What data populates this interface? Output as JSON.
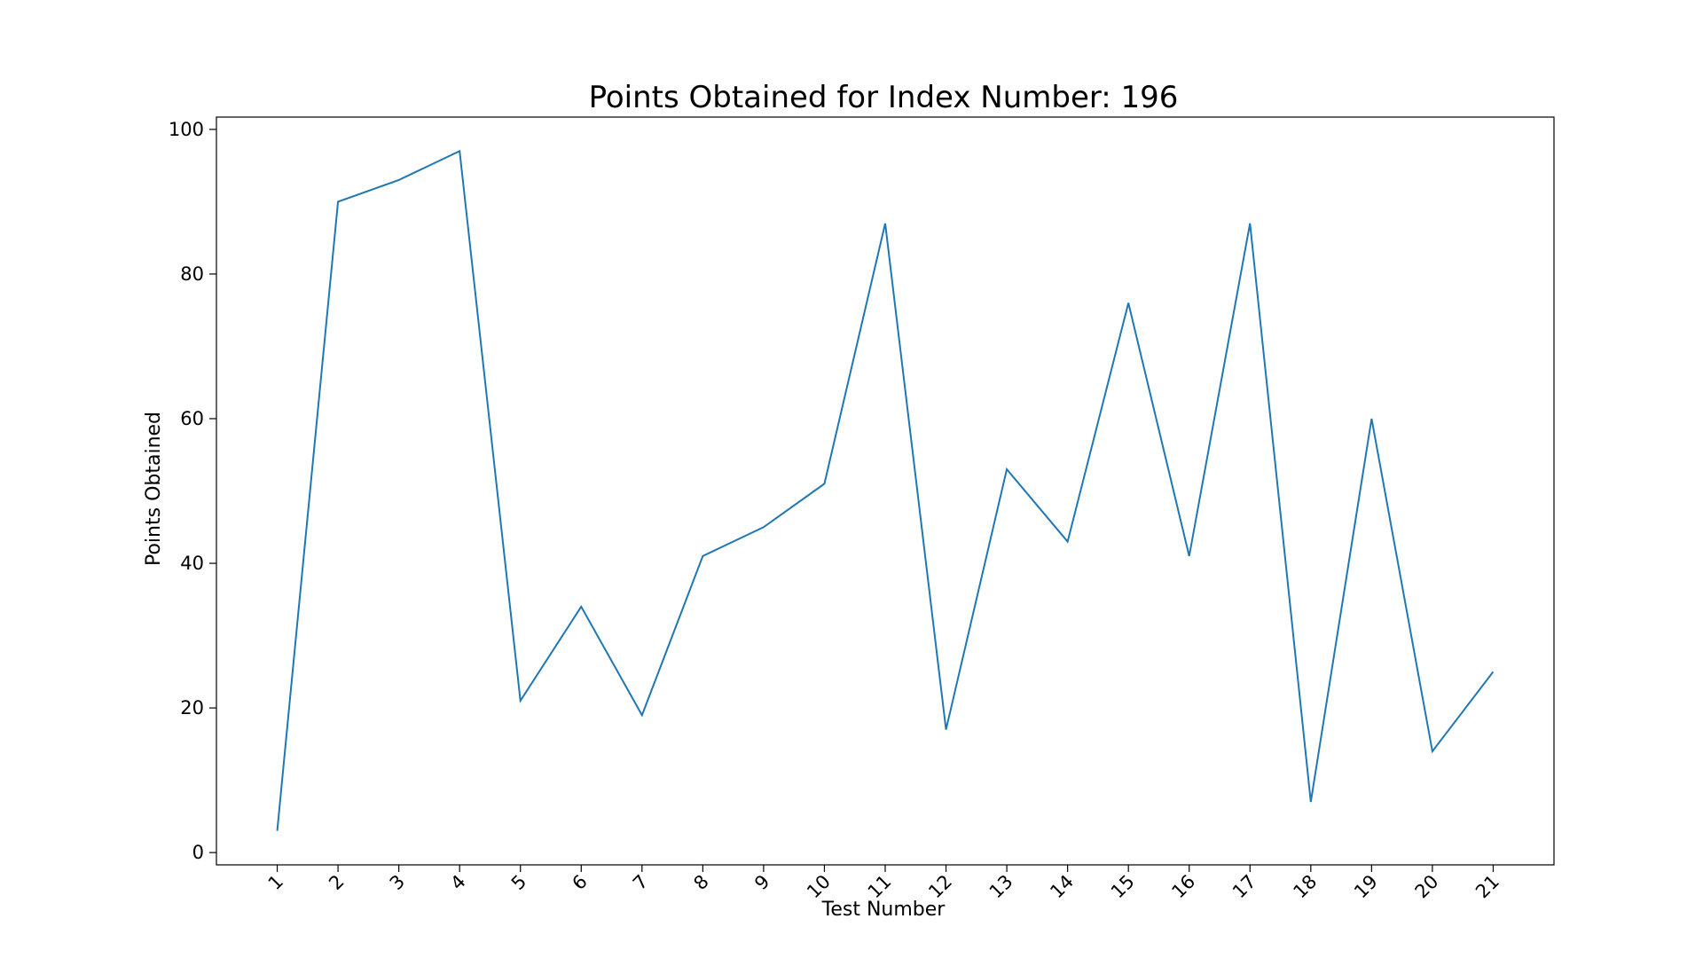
{
  "chart_data": {
    "type": "line",
    "title": "Points Obtained for Index Number: 196",
    "xlabel": "Test Number",
    "ylabel": "Points Obtained",
    "x": [
      "1",
      "2",
      "3",
      "4",
      "5",
      "6",
      "7",
      "8",
      "9",
      "10",
      "11",
      "12",
      "13",
      "14",
      "15",
      "16",
      "17",
      "18",
      "19",
      "20",
      "21"
    ],
    "series": [
      {
        "values": [
          3,
          90,
          93,
          97,
          21,
          34,
          19,
          41,
          45,
          51,
          87,
          17,
          53,
          43,
          76,
          41,
          87,
          7,
          60,
          14,
          25
        ]
      }
    ],
    "ylim": [
      -1.7,
      101.7
    ],
    "yticks": [
      0,
      20,
      40,
      60,
      80,
      100
    ],
    "xtick_rotation": "45 degrees",
    "grid": false,
    "legend": "none",
    "colors": {
      "line": "#1f77b4",
      "axes": "#000000",
      "background": "#ffffff"
    }
  }
}
